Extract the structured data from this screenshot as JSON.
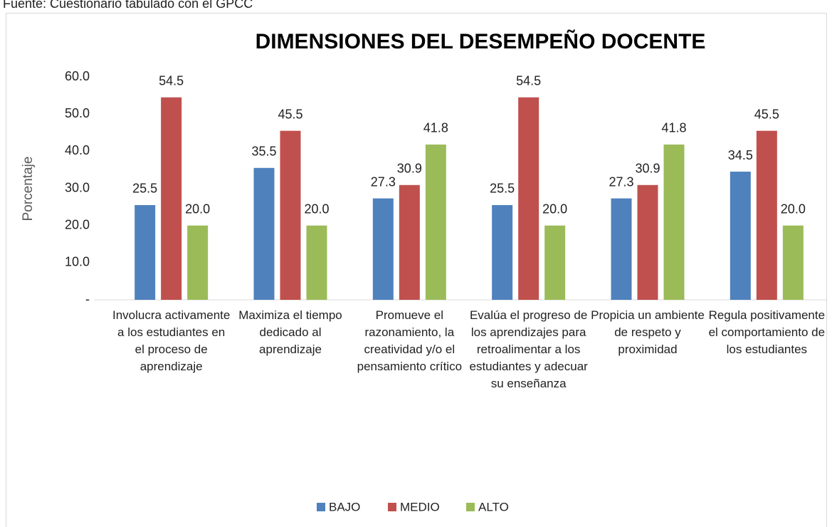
{
  "chart_data": {
    "type": "bar",
    "source": "Fuente: Cuestionario tabulado con el GPCC",
    "title": "DIMENSIONES DEL DESEMPEÑO DOCENTE",
    "y_label": "Porcentaje",
    "categories": [
      "Involucra activamente a los estudiantes en el proceso de aprendizaje",
      "Maximiza el tiempo dedicado al aprendizaje",
      "Promueve el razonamiento, la creatividad y/o el pensamiento crítico",
      "Evalúa el progreso de los aprendizajes para retroalimentar a los estudiantes y adecuar su enseñanza",
      "Propicia un ambiente de respeto y proximidad",
      "Regula positivamente el comportamiento de los estudiantes"
    ],
    "series": [
      {
        "name": "BAJO",
        "color": "#4f81bd",
        "values": [
          25.5,
          35.5,
          27.3,
          25.5,
          27.3,
          34.5
        ],
        "value_labels": [
          "25.5",
          "35.5",
          "27.3",
          "25.5",
          "27.3",
          "34.5"
        ]
      },
      {
        "name": "MEDIO",
        "color": "#c0504d",
        "values": [
          54.5,
          45.5,
          30.9,
          54.5,
          30.9,
          45.5
        ],
        "value_labels": [
          "54.5",
          "45.5",
          "30.9",
          "54.5",
          "30.9",
          "45.5"
        ]
      },
      {
        "name": "ALTO",
        "color": "#9bbb59",
        "values": [
          20,
          20,
          41.8,
          20,
          41.8,
          20
        ],
        "value_labels": [
          "20.0",
          "20.0",
          "41.8",
          "20.0",
          "41.8",
          "20.0"
        ]
      }
    ],
    "ylim": [
      0,
      60
    ],
    "yticks": [
      {
        "value": 0,
        "label": "-"
      },
      {
        "value": 10,
        "label": "10.0"
      },
      {
        "value": 20,
        "label": "20.0"
      },
      {
        "value": 30,
        "label": "30.0"
      },
      {
        "value": 40,
        "label": "40.0"
      },
      {
        "value": 50,
        "label": "50.0"
      },
      {
        "value": 60,
        "label": "60.0"
      }
    ],
    "grid": false,
    "legend": "bottom"
  }
}
